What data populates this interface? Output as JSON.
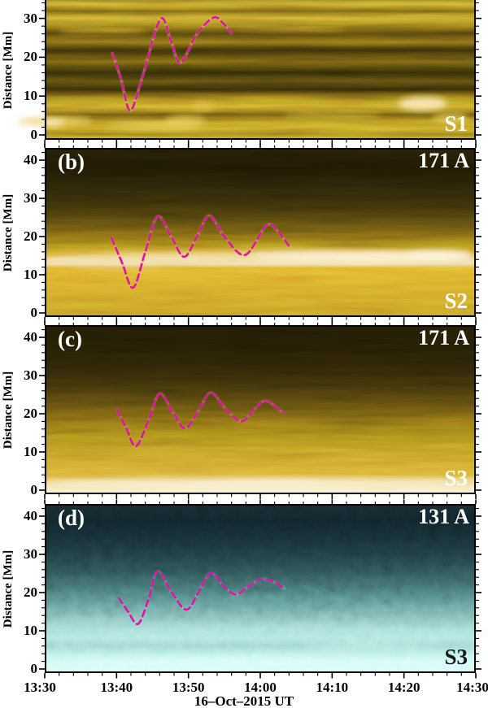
{
  "figure": {
    "background": "#ffffff",
    "frame_color": "#000000",
    "tick_color": "#000000",
    "track_color": "#de12a8",
    "track_dash": "8 5",
    "text_color": "#000000"
  },
  "x_axis": {
    "title": "16–Oct–2015 UT",
    "ticks": [
      "13:30",
      "13:40",
      "13:50",
      "14:00",
      "14:10",
      "14:20",
      "14:30"
    ],
    "tick_minutes": [
      0,
      10,
      20,
      30,
      40,
      50,
      60
    ],
    "minor_step_minutes": 2
  },
  "y_axis": {
    "title": "Distance [Mm]",
    "major_ticks_Mm": [
      0,
      10,
      20,
      30,
      40
    ],
    "minor_step_Mm": 2
  },
  "chart_data": {
    "type": "heatmap",
    "description": "Four time-distance intensity maps of solar oscillating loops with fitted dashed oscillation tracks",
    "x": {
      "label": "16–Oct–2015 UT",
      "ticks": [
        "13:30",
        "13:40",
        "13:50",
        "14:00",
        "14:10",
        "14:20",
        "14:30"
      ],
      "range_minutes_after_start": [
        0,
        60
      ]
    },
    "y": {
      "label": "Distance [Mm]",
      "ticks": [
        0,
        10,
        20,
        30,
        40
      ],
      "units": "Mm"
    },
    "panels": [
      {
        "panel": "a",
        "letter": "",
        "passband": "",
        "slit": "S1",
        "colormap": "gold",
        "y_visible_Mm": [
          0,
          35
        ],
        "track": {
          "t_minutes": [
            9.4,
            10.6,
            11.9,
            13.6,
            16.1,
            17.6,
            18.9,
            21.2,
            23.5,
            24.8,
            26.0
          ],
          "distance_Mm": [
            21.0,
            14.5,
            6.3,
            15.0,
            29.8,
            24.0,
            18.6,
            26.0,
            30.2,
            28.8,
            26.2
          ]
        }
      },
      {
        "panel": "b",
        "letter": "(b)",
        "passband": "171 A",
        "slit": "S2",
        "colormap": "gold",
        "y_visible_Mm": [
          0,
          43
        ],
        "track": {
          "t_minutes": [
            9.3,
            10.8,
            12.3,
            14.0,
            15.7,
            17.6,
            19.4,
            21.2,
            22.9,
            25.0,
            27.9,
            30.9,
            32.6,
            34.2
          ],
          "distance_Mm": [
            19.6,
            13.0,
            6.6,
            16.0,
            25.3,
            20.0,
            14.7,
            20.0,
            25.5,
            20.0,
            15.2,
            23.0,
            21.0,
            17.0
          ]
        }
      },
      {
        "panel": "c",
        "letter": "(c)",
        "passband": "171 A",
        "slit": "S3",
        "colormap": "gold",
        "y_visible_Mm": [
          0,
          43
        ],
        "track": {
          "t_minutes": [
            10.1,
            11.4,
            12.7,
            14.4,
            16.0,
            17.8,
            19.5,
            21.3,
            23.1,
            25.3,
            27.4,
            29.1,
            30.8,
            33.2
          ],
          "distance_Mm": [
            21.1,
            16.0,
            11.5,
            18.0,
            25.3,
            20.5,
            16.2,
            20.5,
            25.5,
            21.0,
            18.0,
            21.0,
            23.4,
            20.2
          ]
        }
      },
      {
        "panel": "d",
        "letter": "(d)",
        "passband": "131 A",
        "slit": "S3",
        "colormap": "teal",
        "y_visible_Mm": [
          0,
          43
        ],
        "track": {
          "t_minutes": [
            10.3,
            11.6,
            13.0,
            14.4,
            15.7,
            17.7,
            19.7,
            21.4,
            23.1,
            25.0,
            26.6,
            28.3,
            30.0,
            31.7,
            33.4
          ],
          "distance_Mm": [
            18.6,
            15.0,
            11.8,
            18.0,
            25.6,
            20.0,
            15.5,
            20.0,
            25.1,
            21.5,
            19.5,
            21.5,
            23.5,
            23.0,
            21.0
          ]
        }
      }
    ]
  },
  "render": {
    "panels": [
      {
        "id": "a",
        "letter_color": "#ffffff",
        "passband_color": "#ffffff",
        "slit_color": "#ffffff",
        "gradient": [
          [
            0,
            "#8a7220"
          ],
          [
            0.03,
            "#c49a2a"
          ],
          [
            0.08,
            "#6a5712"
          ],
          [
            0.13,
            "#c79d2b"
          ],
          [
            0.18,
            "#8a7118"
          ],
          [
            0.24,
            "#4a3d0c"
          ],
          [
            0.3,
            "#7c6414"
          ],
          [
            0.36,
            "#332a08"
          ],
          [
            0.44,
            "#6e5a11"
          ],
          [
            0.52,
            "#2c2506"
          ],
          [
            0.58,
            "#56470e"
          ],
          [
            0.64,
            "#2f2707"
          ],
          [
            0.7,
            "#8b7017"
          ],
          [
            0.76,
            "#c99c28"
          ],
          [
            0.82,
            "#5f4e0f"
          ],
          [
            0.87,
            "#a9851e"
          ],
          [
            0.92,
            "#c59a26"
          ],
          [
            0.96,
            "#8f7418"
          ],
          [
            1,
            "#c9a02c"
          ]
        ],
        "features": [
          [
            1.5,
            3.5,
            45,
            5,
            "#e9c257",
            0.9
          ],
          [
            0.9,
            3.2,
            16,
            4,
            "#ffeaa6",
            0.9
          ],
          [
            8,
            27,
            55,
            4,
            "#c89e2e",
            0.55
          ],
          [
            15,
            2.5,
            55,
            5,
            "#dfb949",
            0.7
          ],
          [
            19.5,
            3.5,
            25,
            7,
            "#e5bd4d",
            0.75
          ],
          [
            22,
            7.5,
            14,
            5,
            "#dcae3f",
            0.8
          ],
          [
            34,
            27.5,
            70,
            4,
            "#bd952a",
            0.5
          ],
          [
            52.6,
            8,
            30,
            8,
            "#ffeaa4",
            0.85
          ],
          [
            56.5,
            4.5,
            22,
            5,
            "#e9c257",
            0.7
          ],
          [
            40,
            5,
            60,
            5,
            "#d3a734",
            0.5
          ]
        ],
        "noise": {
          "filter": "f-streaks",
          "opacity": 0.55
        },
        "thread": {
          "color": "#e8c468",
          "opacity": 0.45
        }
      },
      {
        "id": "b",
        "letter_color": "#ffffff",
        "passband_color": "#ffffff",
        "slit_color": "#ffffff",
        "gradient": [
          [
            0,
            "#231c06"
          ],
          [
            0.12,
            "#1c1604"
          ],
          [
            0.22,
            "#262007"
          ],
          [
            0.32,
            "#322a08"
          ],
          [
            0.4,
            "#463a0b"
          ],
          [
            0.48,
            "#645110"
          ],
          [
            0.55,
            "#8d7016"
          ],
          [
            0.6,
            "#b58a1c"
          ],
          [
            0.635,
            "#d8a825"
          ],
          [
            0.66,
            "#e8cf8e"
          ],
          [
            0.685,
            "#ecd9a2"
          ],
          [
            0.71,
            "#dcab2b"
          ],
          [
            0.78,
            "#d5a528"
          ],
          [
            0.86,
            "#cb9d26"
          ],
          [
            0.93,
            "#c69924"
          ],
          [
            1,
            "#bd9222"
          ]
        ],
        "features": [
          [
            30,
            14.6,
            270,
            7,
            "#f3dd9d",
            0.75
          ],
          [
            44,
            14.8,
            135,
            6,
            "#fdf4d6",
            0.85
          ],
          [
            10,
            12.5,
            60,
            5,
            "#edd79a",
            0.45
          ],
          [
            55,
            15.2,
            40,
            5,
            "#fff8e2",
            0.8
          ]
        ],
        "noise": {
          "filter": "f-streaks",
          "opacity": 0.45
        },
        "thread": {
          "color": "#e4bd62",
          "opacity": 0.4
        }
      },
      {
        "id": "c",
        "letter_color": "#ffffff",
        "passband_color": "#ffffff",
        "slit_color": "#ffffff",
        "gradient": [
          [
            0,
            "#1f1905"
          ],
          [
            0.14,
            "#221b05"
          ],
          [
            0.26,
            "#2a2207"
          ],
          [
            0.36,
            "#3a3009"
          ],
          [
            0.46,
            "#55440d"
          ],
          [
            0.56,
            "#7a6213"
          ],
          [
            0.66,
            "#a08018"
          ],
          [
            0.74,
            "#b99023"
          ],
          [
            0.82,
            "#c89b2a"
          ],
          [
            0.88,
            "#d4a832"
          ],
          [
            0.925,
            "#e2bf58"
          ],
          [
            0.96,
            "#f2e0a4"
          ],
          [
            1,
            "#fdf6e0"
          ]
        ],
        "features": [
          [
            30,
            1.8,
            280,
            5,
            "#fffaec",
            0.8
          ],
          [
            12,
            8,
            60,
            4,
            "#c89c2c",
            0.4
          ]
        ],
        "noise": {
          "filter": "f-streaks",
          "opacity": 0.45
        },
        "thread": {
          "color": "#cfa850",
          "opacity": 0.4
        }
      },
      {
        "id": "d",
        "letter_color": "#ffffff",
        "passband_color": "#ffffff",
        "slit_color": "#1a1a1a",
        "gradient": [
          [
            0,
            "#15262b"
          ],
          [
            0.1,
            "#102128"
          ],
          [
            0.2,
            "#152a30"
          ],
          [
            0.3,
            "#1d383d"
          ],
          [
            0.4,
            "#2a4d4e"
          ],
          [
            0.5,
            "#3f6a68"
          ],
          [
            0.58,
            "#568a87"
          ],
          [
            0.66,
            "#74b0ab"
          ],
          [
            0.73,
            "#92d2cc"
          ],
          [
            0.79,
            "#a8e6e0"
          ],
          [
            0.84,
            "#97d2cc"
          ],
          [
            0.89,
            "#b4efe9"
          ],
          [
            0.94,
            "#c9f9f4"
          ],
          [
            0.98,
            "#d4fdf8"
          ],
          [
            1,
            "#bff2ec"
          ]
        ],
        "features": [
          [
            30,
            9.8,
            280,
            6,
            "#a8e4de",
            0.45
          ],
          [
            30,
            1.8,
            280,
            5,
            "#dcfffb",
            0.7
          ],
          [
            7,
            12,
            55,
            5,
            "#9cd6d0",
            0.45
          ],
          [
            45,
            6,
            80,
            5,
            "#c2f4ee",
            0.5
          ]
        ],
        "noise": {
          "filter": "f-grain",
          "opacity": 0.42
        },
        "thread": {
          "color": "#a7e0da",
          "opacity": 0.25
        }
      }
    ]
  }
}
